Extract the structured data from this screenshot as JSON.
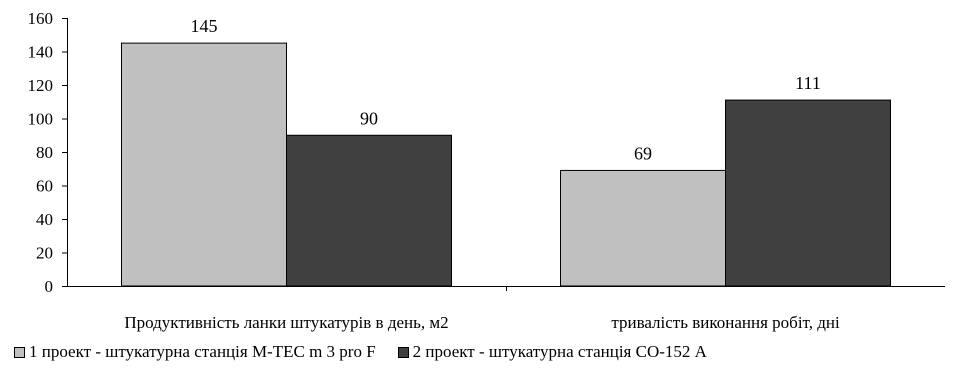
{
  "chart_data": {
    "type": "bar",
    "title": "",
    "xlabel": "",
    "ylabel": "",
    "categories": [
      "Продуктивність ланки штукатурів в день, м2",
      "тривалість виконання робіт, дні"
    ],
    "series": [
      {
        "name": "1 проект - штукатурна станція M-TEC m 3 pro F",
        "values": [
          145,
          69
        ],
        "color": "#c0c0c0"
      },
      {
        "name": "2 проект - штукатурна станція СО-152 А",
        "values": [
          90,
          111
        ],
        "color": "#404040"
      }
    ],
    "ylim": [
      0,
      160
    ],
    "yticks": [
      0,
      20,
      40,
      60,
      80,
      100,
      120,
      140,
      160
    ],
    "grid": false,
    "legend_position": "bottom-left",
    "data_labels": true
  }
}
